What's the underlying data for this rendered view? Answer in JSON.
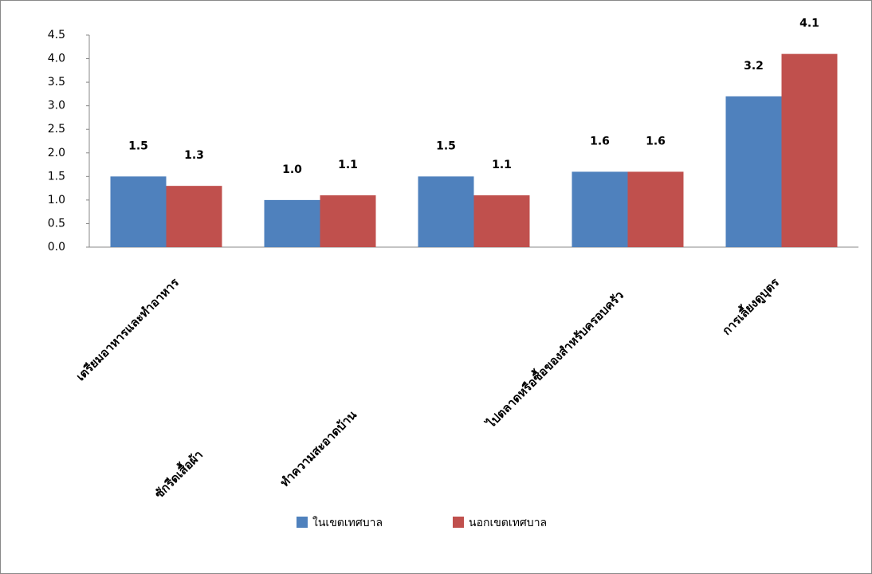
{
  "chart_data": {
    "type": "bar",
    "categories": [
      "เตรียมอาหารและทำอาหาร",
      "ซักรีดเสื้อผ้า",
      "ทำความสะอาดบ้าน",
      "ไปตลาดหรือซื้อของสำหรับครอบครัว",
      "การเลี้ยงดูบุตร"
    ],
    "series": [
      {
        "name": "ในเขตเทศบาล",
        "color": "#4f81bd",
        "values": [
          1.5,
          1.0,
          1.5,
          1.6,
          3.2
        ],
        "value_labels": [
          "1.5",
          "1.0",
          "1.5",
          "1.6",
          "3.2"
        ]
      },
      {
        "name": "นอกเขตเทศบาล",
        "color": "#c0504d",
        "values": [
          1.3,
          1.1,
          1.1,
          1.6,
          4.1
        ],
        "value_labels": [
          "1.3",
          "1.1",
          "1.1",
          "1.6",
          "4.1"
        ]
      }
    ],
    "ylim": [
      0,
      4.5
    ],
    "yticks": [
      {
        "value": 0,
        "label": "0.0"
      },
      {
        "value": 0.5,
        "label": "0.5"
      },
      {
        "value": 1,
        "label": "1.0"
      },
      {
        "value": 1.5,
        "label": "1.5"
      },
      {
        "value": 2,
        "label": "2.0"
      },
      {
        "value": 2.5,
        "label": "2.5"
      },
      {
        "value": 3,
        "label": "3.0"
      },
      {
        "value": 3.5,
        "label": "3.5"
      },
      {
        "value": 4,
        "label": "4.0"
      },
      {
        "value": 4.5,
        "label": "4.5"
      }
    ],
    "grid": false,
    "legend": "bottom"
  }
}
